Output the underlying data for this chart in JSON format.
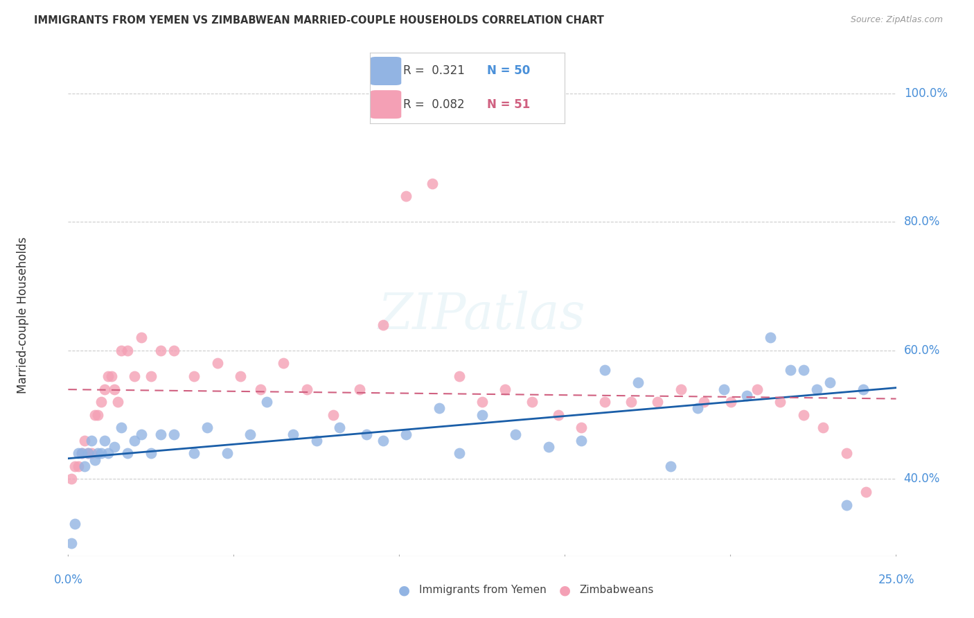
{
  "title": "IMMIGRANTS FROM YEMEN VS ZIMBABWEAN MARRIED-COUPLE HOUSEHOLDS CORRELATION CHART",
  "source": "Source: ZipAtlas.com",
  "ylabel": "Married-couple Households",
  "x_range": [
    0.0,
    0.25
  ],
  "y_range": [
    0.28,
    1.03
  ],
  "watermark": "ZIPatlas",
  "legend_blue_R": "0.321",
  "legend_blue_N": "50",
  "legend_pink_R": "0.082",
  "legend_pink_N": "51",
  "legend_blue_label": "Immigrants from Yemen",
  "legend_pink_label": "Zimbabweans",
  "blue_color": "#92b4e3",
  "pink_color": "#f4a0b5",
  "blue_line_color": "#1a5ea8",
  "pink_line_color": "#d06080",
  "background_color": "#ffffff",
  "grid_color": "#cccccc",
  "tick_color": "#4a90d9",
  "blue_x": [
    0.001,
    0.002,
    0.003,
    0.004,
    0.005,
    0.006,
    0.007,
    0.008,
    0.009,
    0.01,
    0.011,
    0.012,
    0.014,
    0.016,
    0.018,
    0.02,
    0.022,
    0.025,
    0.028,
    0.032,
    0.038,
    0.042,
    0.048,
    0.055,
    0.06,
    0.068,
    0.075,
    0.082,
    0.09,
    0.095,
    0.102,
    0.112,
    0.118,
    0.125,
    0.135,
    0.145,
    0.155,
    0.162,
    0.172,
    0.182,
    0.19,
    0.198,
    0.205,
    0.212,
    0.218,
    0.222,
    0.226,
    0.23,
    0.235,
    0.24
  ],
  "blue_y": [
    0.3,
    0.33,
    0.44,
    0.44,
    0.42,
    0.44,
    0.46,
    0.43,
    0.44,
    0.44,
    0.46,
    0.44,
    0.45,
    0.48,
    0.44,
    0.46,
    0.47,
    0.44,
    0.47,
    0.47,
    0.44,
    0.48,
    0.44,
    0.47,
    0.52,
    0.47,
    0.46,
    0.48,
    0.47,
    0.46,
    0.47,
    0.51,
    0.44,
    0.5,
    0.47,
    0.45,
    0.46,
    0.57,
    0.55,
    0.42,
    0.51,
    0.54,
    0.53,
    0.62,
    0.57,
    0.57,
    0.54,
    0.55,
    0.36,
    0.54
  ],
  "pink_x": [
    0.001,
    0.002,
    0.003,
    0.004,
    0.005,
    0.006,
    0.007,
    0.008,
    0.009,
    0.01,
    0.011,
    0.012,
    0.013,
    0.014,
    0.015,
    0.016,
    0.018,
    0.02,
    0.022,
    0.025,
    0.028,
    0.032,
    0.038,
    0.045,
    0.052,
    0.058,
    0.065,
    0.072,
    0.08,
    0.088,
    0.095,
    0.102,
    0.11,
    0.118,
    0.125,
    0.132,
    0.14,
    0.148,
    0.155,
    0.162,
    0.17,
    0.178,
    0.185,
    0.192,
    0.2,
    0.208,
    0.215,
    0.222,
    0.228,
    0.235,
    0.241
  ],
  "pink_y": [
    0.4,
    0.42,
    0.42,
    0.44,
    0.46,
    0.44,
    0.44,
    0.5,
    0.5,
    0.52,
    0.54,
    0.56,
    0.56,
    0.54,
    0.52,
    0.6,
    0.6,
    0.56,
    0.62,
    0.56,
    0.6,
    0.6,
    0.56,
    0.58,
    0.56,
    0.54,
    0.58,
    0.54,
    0.5,
    0.54,
    0.64,
    0.84,
    0.86,
    0.56,
    0.52,
    0.54,
    0.52,
    0.5,
    0.48,
    0.52,
    0.52,
    0.52,
    0.54,
    0.52,
    0.52,
    0.54,
    0.52,
    0.5,
    0.48,
    0.44,
    0.38
  ]
}
